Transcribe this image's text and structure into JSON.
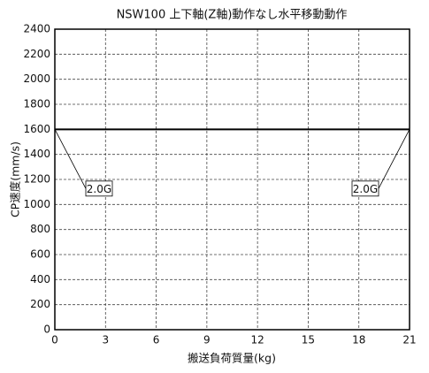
{
  "chart_data": {
    "type": "line",
    "title": "NSW100  上下軸(Z軸)動作なし水平移動動作",
    "x_label": "搬送負荷質量(kg)",
    "y_label": "CP速度(mm/s)",
    "x": [
      0,
      21
    ],
    "values": [
      1600,
      1600
    ],
    "color": "#000000",
    "annotations": [
      "2.0G",
      "2.0G"
    ],
    "xlim": [
      0,
      21
    ],
    "xticks": [
      0,
      3,
      6,
      9,
      12,
      15,
      18,
      21
    ],
    "ylim": [
      0,
      2400
    ],
    "yticks": [
      0,
      200,
      400,
      600,
      800,
      1000,
      1200,
      1400,
      1600,
      1800,
      2000,
      2200,
      2400
    ],
    "grid": true
  }
}
